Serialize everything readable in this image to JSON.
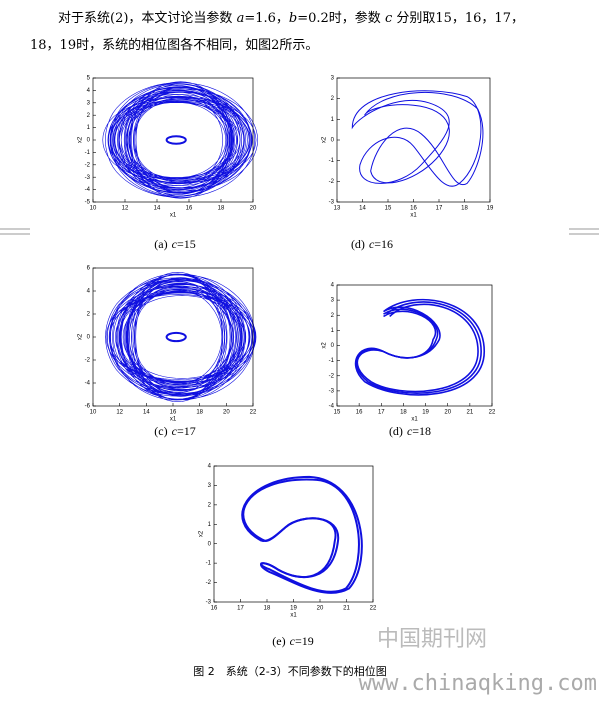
{
  "paragraph": {
    "segments": [
      "对于系统(2)，本文讨论当参数 ",
      "a",
      "=1.6，",
      "b",
      "=0.2时，参数 ",
      "c",
      " 分别取15，16，17，",
      "18，19时，系统的相位图各不相同，如图2所示。"
    ]
  },
  "figures": [
    {
      "caption": {
        "label": "(a)",
        "var": "c",
        "value": "=15"
      },
      "xlabel": "x1",
      "ylabel": "x2",
      "xlim": [
        10,
        20
      ],
      "ylim": [
        -5,
        5
      ],
      "xticks": [
        10,
        12,
        14,
        16,
        18,
        20
      ],
      "yticks": [
        -5,
        -4,
        -3,
        -2,
        -1,
        0,
        1,
        2,
        3,
        4,
        5
      ]
    },
    {
      "caption": {
        "label": "(d)",
        "var": "c",
        "value": "=16"
      },
      "xlabel": "x1",
      "ylabel": "x2",
      "xlim": [
        13,
        19
      ],
      "ylim": [
        -3,
        3
      ],
      "xticks": [
        13,
        14,
        15,
        16,
        17,
        18,
        19
      ],
      "yticks": [
        -3,
        -2,
        -1,
        0,
        1,
        2,
        3
      ]
    },
    {
      "caption": {
        "label": "(c)",
        "var": "c",
        "value": "=17"
      },
      "xlabel": "x1",
      "ylabel": "x2",
      "xlim": [
        10,
        22
      ],
      "ylim": [
        -6,
        6
      ],
      "xticks": [
        10,
        12,
        14,
        16,
        18,
        20,
        22
      ],
      "yticks": [
        -6,
        -4,
        -2,
        0,
        2,
        4,
        6
      ]
    },
    {
      "caption": {
        "label": "(d)",
        "var": "c",
        "value": "=18"
      },
      "xlabel": "x1",
      "ylabel": "x2",
      "xlim": [
        15,
        22
      ],
      "ylim": [
        -4,
        4
      ],
      "xticks": [
        15,
        16,
        17,
        18,
        19,
        20,
        21,
        22
      ],
      "yticks": [
        -4,
        -3,
        -2,
        -1,
        0,
        1,
        2,
        3,
        4
      ]
    },
    {
      "caption": {
        "label": "(e)",
        "var": "c",
        "value": "=19"
      },
      "xlabel": "x1",
      "ylabel": "x2",
      "xlim": [
        16,
        22
      ],
      "ylim": [
        -3,
        4
      ],
      "xticks": [
        16,
        17,
        18,
        19,
        20,
        21,
        22
      ],
      "yticks": [
        -3,
        -2,
        -1,
        0,
        1,
        2,
        3,
        4
      ]
    }
  ],
  "figure_caption": "图 2　系统（2-3）不同参数下的相位图",
  "watermark": {
    "cn": "中国期刊网",
    "url": "www.chinaqking.com"
  }
}
